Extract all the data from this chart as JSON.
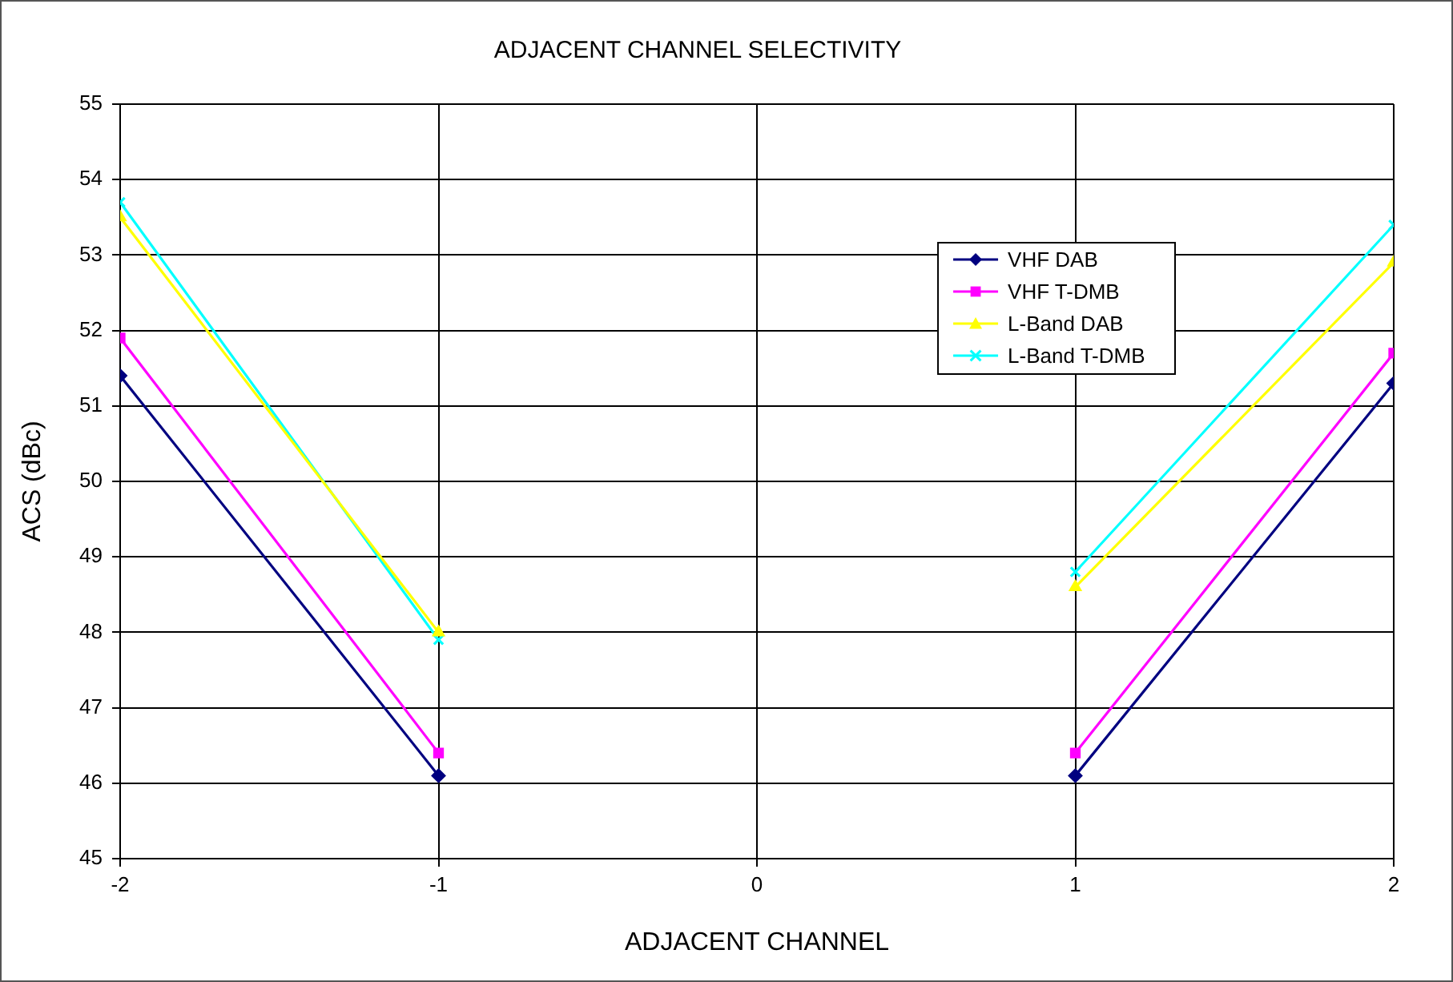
{
  "chart_data": {
    "type": "line",
    "title": "ADJACENT CHANNEL SELECTIVITY",
    "xlabel": "ADJACENT CHANNEL",
    "ylabel": "ACS (dBc)",
    "x": [
      -2,
      -1,
      0,
      1,
      2
    ],
    "series": [
      {
        "name": "VHF DAB",
        "color": "#000080",
        "marker": "diamond",
        "values": [
          51.4,
          46.1,
          null,
          46.1,
          51.3
        ]
      },
      {
        "name": "VHF T-DMB",
        "color": "#ff00ff",
        "marker": "square",
        "values": [
          51.9,
          46.4,
          null,
          46.4,
          51.7
        ]
      },
      {
        "name": "L-Band DAB",
        "color": "#ffff00",
        "marker": "triangle",
        "values": [
          53.5,
          48.0,
          null,
          48.6,
          52.9
        ]
      },
      {
        "name": "L-Band T-DMB",
        "color": "#00ffff",
        "marker": "cross",
        "values": [
          53.7,
          47.9,
          null,
          48.8,
          53.4
        ]
      }
    ],
    "xlim": [
      -2,
      2
    ],
    "xticks": [
      -2,
      -1,
      0,
      1,
      2
    ],
    "ylim": [
      45,
      55
    ],
    "yticks": [
      45,
      46,
      47,
      48,
      49,
      50,
      51,
      52,
      53,
      54,
      55
    ],
    "grid": true,
    "legend": "top right",
    "line_style": "solid"
  }
}
